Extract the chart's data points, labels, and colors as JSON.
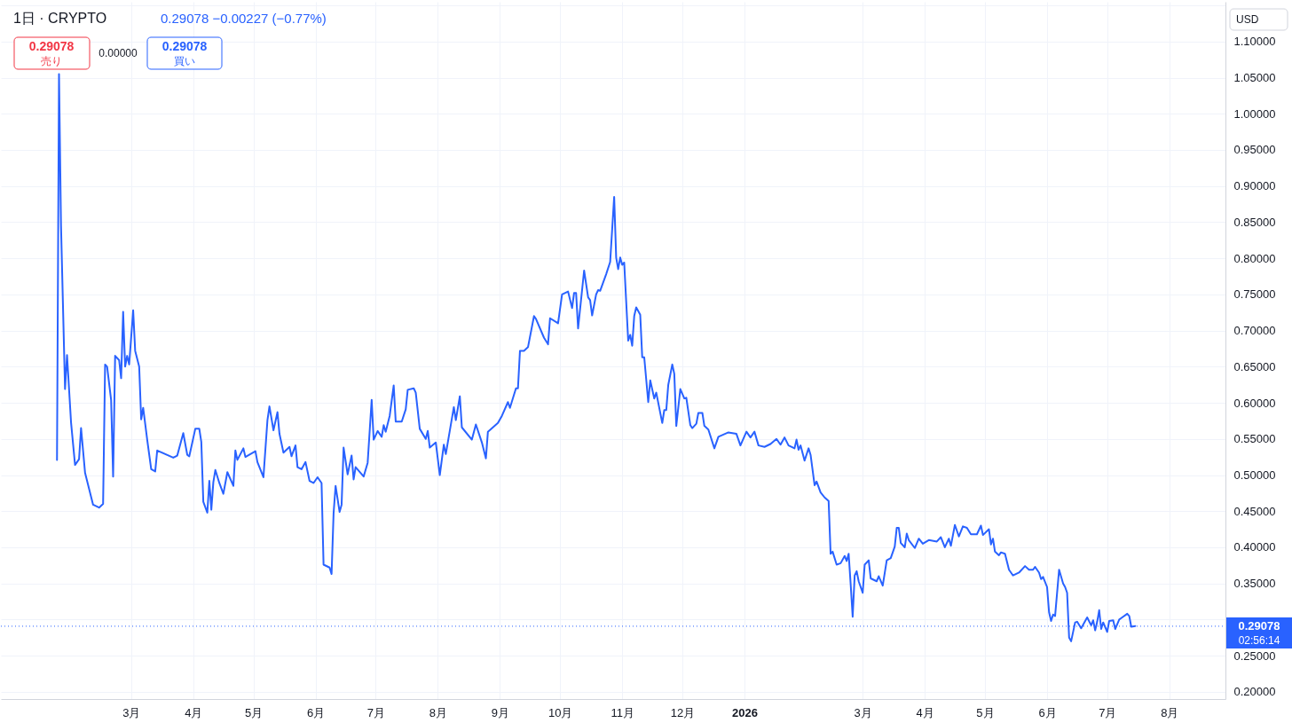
{
  "chart_data": {
    "type": "line",
    "title": "1日 · CRYPTO",
    "annotations": [
      "0.29078 −0.00227 (−0.77%)",
      "0.29078",
      "売り",
      "0.00000",
      "0.29078",
      "買い",
      "USD",
      "02:56:14"
    ],
    "x": [
      "2025-01-23",
      "2025-01-24",
      "2025-01-25",
      "2025-01-27",
      "2025-01-28",
      "2025-01-30",
      "2025-02-01",
      "2025-02-03",
      "2025-02-04",
      "2025-02-06",
      "2025-02-08",
      "2025-02-10",
      "2025-02-13",
      "2025-02-15",
      "2025-02-16",
      "2025-02-17",
      "2025-02-19",
      "2025-02-20",
      "2025-02-21",
      "2025-02-23",
      "2025-02-24",
      "2025-02-25",
      "2025-02-26",
      "2025-02-27",
      "2025-02-28",
      "2025-03-02",
      "2025-03-03",
      "2025-03-05",
      "2025-03-06",
      "2025-03-07",
      "2025-03-09",
      "2025-03-11",
      "2025-03-13",
      "2025-03-14",
      "2025-03-22",
      "2025-03-24",
      "2025-03-27",
      "2025-03-29",
      "2025-03-30",
      "2025-04-02",
      "2025-04-04",
      "2025-04-05",
      "2025-04-06",
      "2025-04-08",
      "2025-04-09",
      "2025-04-10",
      "2025-04-11",
      "2025-04-12",
      "2025-04-14",
      "2025-04-16",
      "2025-04-18",
      "2025-04-21",
      "2025-04-22",
      "2025-04-23",
      "2025-04-26",
      "2025-04-27",
      "2025-05-02",
      "2025-05-03",
      "2025-05-06",
      "2025-05-08",
      "2025-05-09",
      "2025-05-11",
      "2025-05-13",
      "2025-05-14",
      "2025-05-16",
      "2025-05-19",
      "2025-05-20",
      "2025-05-22",
      "2025-05-23",
      "2025-05-25",
      "2025-05-27",
      "2025-05-29",
      "2025-05-31",
      "2025-06-02",
      "2025-06-04",
      "2025-06-05",
      "2025-06-08",
      "2025-06-09",
      "2025-06-10",
      "2025-06-11",
      "2025-06-13",
      "2025-06-14",
      "2025-06-15",
      "2025-06-17",
      "2025-06-19",
      "2025-06-20",
      "2025-06-21",
      "2025-06-25",
      "2025-06-27",
      "2025-06-29",
      "2025-06-30",
      "2025-07-02",
      "2025-07-04",
      "2025-07-05",
      "2025-07-06",
      "2025-07-08",
      "2025-07-10",
      "2025-07-11",
      "2025-07-14",
      "2025-07-16",
      "2025-07-17",
      "2025-07-20",
      "2025-07-21",
      "2025-07-23",
      "2025-07-26",
      "2025-07-27",
      "2025-07-28",
      "2025-07-31",
      "2025-08-02",
      "2025-08-04",
      "2025-08-05",
      "2025-08-09",
      "2025-08-10",
      "2025-08-12",
      "2025-08-13",
      "2025-08-18",
      "2025-08-20",
      "2025-08-23",
      "2025-08-25",
      "2025-08-26",
      "2025-08-31",
      "2025-09-02",
      "2025-09-05",
      "2025-09-06",
      "2025-09-09",
      "2025-09-10",
      "2025-09-11",
      "2025-09-13",
      "2025-09-15",
      "2025-09-18",
      "2025-09-19",
      "2025-09-23",
      "2025-09-25",
      "2025-09-26",
      "2025-09-30",
      "2025-10-02",
      "2025-10-05",
      "2025-10-07",
      "2025-10-08",
      "2025-10-09",
      "2025-10-10",
      "2025-10-13",
      "2025-10-15",
      "2025-10-16",
      "2025-10-17",
      "2025-10-19",
      "2025-10-20",
      "2025-10-21",
      "2025-10-24",
      "2025-10-26",
      "2025-10-28",
      "2025-10-29",
      "2025-10-30",
      "2025-10-31",
      "2025-11-01",
      "2025-11-02",
      "2025-11-04",
      "2025-11-05",
      "2025-11-06",
      "2025-11-07",
      "2025-11-08",
      "2025-11-10",
      "2025-11-11",
      "2025-11-12",
      "2025-11-14",
      "2025-11-15",
      "2025-11-17",
      "2025-11-18",
      "2025-11-21",
      "2025-11-22",
      "2025-11-23",
      "2025-11-24",
      "2025-11-26",
      "2025-11-27",
      "2025-11-28",
      "2025-11-30",
      "2025-12-02",
      "2025-12-03",
      "2025-12-05",
      "2025-12-06",
      "2025-12-08",
      "2025-12-09",
      "2025-12-11",
      "2025-12-12",
      "2025-12-14",
      "2025-12-17",
      "2025-12-19",
      "2025-12-24",
      "2025-12-28",
      "2025-12-30",
      "2026-01-02",
      "2026-01-04",
      "2026-01-06",
      "2026-01-08",
      "2026-01-11",
      "2026-01-14",
      "2026-01-17",
      "2026-01-19",
      "2026-01-21",
      "2026-01-23",
      "2026-01-26",
      "2026-01-27",
      "2026-01-28",
      "2026-01-29",
      "2026-01-31",
      "2026-02-02",
      "2026-02-03",
      "2026-02-05",
      "2026-02-06",
      "2026-02-08",
      "2026-02-10",
      "2026-02-12",
      "2026-02-13",
      "2026-02-14",
      "2026-02-16",
      "2026-02-18",
      "2026-02-20",
      "2026-02-21",
      "2026-02-22",
      "2026-02-23",
      "2026-02-24",
      "2026-02-25",
      "2026-02-26",
      "2026-02-27",
      "2026-03-01",
      "2026-03-02",
      "2026-03-04",
      "2026-03-05",
      "2026-03-08",
      "2026-03-09",
      "2026-03-11",
      "2026-03-13",
      "2026-03-15",
      "2026-03-17",
      "2026-03-18",
      "2026-03-19",
      "2026-03-20",
      "2026-03-22",
      "2026-03-23",
      "2026-03-24",
      "2026-03-27",
      "2026-03-29",
      "2026-03-31",
      "2026-04-03",
      "2026-04-07",
      "2026-04-09",
      "2026-04-11",
      "2026-04-13",
      "2026-04-14",
      "2026-04-16",
      "2026-04-18",
      "2026-04-20",
      "2026-04-22",
      "2026-04-24",
      "2026-04-27",
      "2026-04-29",
      "2026-04-30",
      "2026-05-03",
      "2026-05-04",
      "2026-05-05",
      "2026-05-06",
      "2026-05-08",
      "2026-05-09",
      "2026-05-11",
      "2026-05-13",
      "2026-05-15",
      "2026-05-18",
      "2026-05-21",
      "2026-05-23",
      "2026-05-25",
      "2026-05-26",
      "2026-05-28",
      "2026-05-29",
      "2026-05-30",
      "2026-06-01",
      "2026-06-02",
      "2026-06-03",
      "2026-06-04",
      "2026-06-05",
      "2026-06-07",
      "2026-06-09",
      "2026-06-10",
      "2026-06-11",
      "2026-06-12",
      "2026-06-13",
      "2026-06-15",
      "2026-06-16",
      "2026-06-18",
      "2026-06-21",
      "2026-06-23",
      "2026-06-24",
      "2026-06-25",
      "2026-06-26",
      "2026-06-27",
      "2026-06-28",
      "2026-06-29",
      "2026-07-01",
      "2026-07-02",
      "2026-07-04",
      "2026-07-05",
      "2026-07-07",
      "2026-07-08",
      "2026-07-11",
      "2026-07-12",
      "2026-07-13",
      "2026-07-15"
    ],
    "series": [
      {
        "color": "#2962ff",
        "values": [
          0.521,
          1.055,
          0.845,
          0.619,
          0.666,
          0.573,
          0.514,
          0.522,
          0.565,
          0.503,
          0.481,
          0.459,
          0.455,
          0.46,
          0.653,
          0.65,
          0.604,
          0.498,
          0.665,
          0.659,
          0.634,
          0.726,
          0.65,
          0.665,
          0.653,
          0.728,
          0.672,
          0.65,
          0.577,
          0.593,
          0.549,
          0.508,
          0.505,
          0.534,
          0.524,
          0.527,
          0.558,
          0.528,
          0.526,
          0.564,
          0.564,
          0.546,
          0.463,
          0.448,
          0.492,
          0.452,
          0.49,
          0.507,
          0.489,
          0.474,
          0.504,
          0.485,
          0.534,
          0.521,
          0.537,
          0.525,
          0.533,
          0.518,
          0.497,
          0.576,
          0.595,
          0.562,
          0.587,
          0.557,
          0.531,
          0.539,
          0.526,
          0.541,
          0.511,
          0.508,
          0.518,
          0.492,
          0.489,
          0.497,
          0.489,
          0.376,
          0.372,
          0.363,
          0.447,
          0.485,
          0.449,
          0.459,
          0.538,
          0.501,
          0.527,
          0.494,
          0.511,
          0.498,
          0.517,
          0.604,
          0.549,
          0.561,
          0.553,
          0.569,
          0.56,
          0.582,
          0.624,
          0.574,
          0.574,
          0.591,
          0.618,
          0.62,
          0.614,
          0.564,
          0.55,
          0.561,
          0.538,
          0.545,
          0.5,
          0.542,
          0.529,
          0.594,
          0.576,
          0.609,
          0.566,
          0.549,
          0.57,
          0.545,
          0.523,
          0.56,
          0.572,
          0.582,
          0.601,
          0.593,
          0.62,
          0.62,
          0.672,
          0.672,
          0.677,
          0.72,
          0.716,
          0.69,
          0.681,
          0.717,
          0.71,
          0.75,
          0.754,
          0.731,
          0.752,
          0.752,
          0.703,
          0.783,
          0.746,
          0.742,
          0.721,
          0.75,
          0.756,
          0.755,
          0.778,
          0.795,
          0.885,
          0.801,
          0.785,
          0.801,
          0.791,
          0.794,
          0.686,
          0.694,
          0.679,
          0.72,
          0.732,
          0.722,
          0.663,
          0.663,
          0.601,
          0.631,
          0.606,
          0.614,
          0.572,
          0.59,
          0.59,
          0.625,
          0.653,
          0.64,
          0.568,
          0.619,
          0.606,
          0.607,
          0.569,
          0.565,
          0.571,
          0.586,
          0.586,
          0.568,
          0.563,
          0.537,
          0.553,
          0.559,
          0.557,
          0.541,
          0.56,
          0.552,
          0.56,
          0.541,
          0.539,
          0.543,
          0.55,
          0.542,
          0.552,
          0.541,
          0.537,
          0.549,
          0.535,
          0.541,
          0.52,
          0.537,
          0.528,
          0.486,
          0.491,
          0.476,
          0.469,
          0.464,
          0.391,
          0.394,
          0.376,
          0.378,
          0.388,
          0.381,
          0.391,
          0.349,
          0.304,
          0.361,
          0.367,
          0.353,
          0.337,
          0.376,
          0.382,
          0.357,
          0.353,
          0.36,
          0.347,
          0.382,
          0.385,
          0.401,
          0.427,
          0.427,
          0.406,
          0.4,
          0.419,
          0.41,
          0.399,
          0.412,
          0.405,
          0.41,
          0.408,
          0.414,
          0.4,
          0.412,
          0.402,
          0.431,
          0.415,
          0.429,
          0.427,
          0.418,
          0.418,
          0.43,
          0.417,
          0.425,
          0.404,
          0.412,
          0.394,
          0.389,
          0.393,
          0.391,
          0.369,
          0.361,
          0.365,
          0.374,
          0.369,
          0.369,
          0.373,
          0.365,
          0.356,
          0.359,
          0.345,
          0.31,
          0.298,
          0.307,
          0.305,
          0.369,
          0.35,
          0.345,
          0.337,
          0.275,
          0.27,
          0.296,
          0.297,
          0.288,
          0.303,
          0.292,
          0.299,
          0.285,
          0.297,
          0.313,
          0.287,
          0.296,
          0.283,
          0.298,
          0.299,
          0.287,
          0.3,
          0.302,
          0.308,
          0.305,
          0.29,
          0.291
        ]
      }
    ],
    "xlim": [
      "2024-12-26",
      "2026-08-29"
    ],
    "ylim": [
      0.19,
      1.155
    ],
    "xticks": [
      {
        "value": "2025-03-01",
        "label": "3月"
      },
      {
        "value": "2025-04-01",
        "label": "4月"
      },
      {
        "value": "2025-05-01",
        "label": "5月"
      },
      {
        "value": "2025-06-01",
        "label": "6月"
      },
      {
        "value": "2025-07-01",
        "label": "7月"
      },
      {
        "value": "2025-08-01",
        "label": "8月"
      },
      {
        "value": "2025-09-01",
        "label": "9月"
      },
      {
        "value": "2025-10-01",
        "label": "10月"
      },
      {
        "value": "2025-11-01",
        "label": "11月"
      },
      {
        "value": "2025-12-01",
        "label": "12月"
      },
      {
        "value": "2026-01-01",
        "label": "2026"
      },
      {
        "value": "2026-03-01",
        "label": "3月"
      },
      {
        "value": "2026-04-01",
        "label": "4月"
      },
      {
        "value": "2026-05-01",
        "label": "5月"
      },
      {
        "value": "2026-06-01",
        "label": "6月"
      },
      {
        "value": "2026-07-01",
        "label": "7月"
      },
      {
        "value": "2026-08-01",
        "label": "8月"
      }
    ],
    "yticks": [
      {
        "value": 0.2,
        "label": "0.20000"
      },
      {
        "value": 0.25,
        "label": "0.25000"
      },
      {
        "value": 0.3,
        "label": null
      },
      {
        "value": 0.35,
        "label": "0.35000"
      },
      {
        "value": 0.4,
        "label": "0.40000"
      },
      {
        "value": 0.45,
        "label": "0.45000"
      },
      {
        "value": 0.5,
        "label": "0.50000"
      },
      {
        "value": 0.55,
        "label": "0.55000"
      },
      {
        "value": 0.6,
        "label": "0.60000"
      },
      {
        "value": 0.65,
        "label": "0.65000"
      },
      {
        "value": 0.7,
        "label": "0.70000"
      },
      {
        "value": 0.75,
        "label": "0.75000"
      },
      {
        "value": 0.8,
        "label": "0.80000"
      },
      {
        "value": 0.85,
        "label": "0.85000"
      },
      {
        "value": 0.9,
        "label": "0.90000"
      },
      {
        "value": 0.95,
        "label": "0.95000"
      },
      {
        "value": 1.0,
        "label": "1.00000"
      },
      {
        "value": 1.05,
        "label": "1.05000"
      },
      {
        "value": 1.1,
        "label": "1.10000"
      },
      {
        "value": 1.15,
        "label": null
      }
    ],
    "grid": true,
    "ref_lines": [
      {
        "axis": "y",
        "value": 0.29078,
        "label": "0.29078",
        "color": "#2962ff",
        "line_style": "dotted"
      }
    ]
  }
}
